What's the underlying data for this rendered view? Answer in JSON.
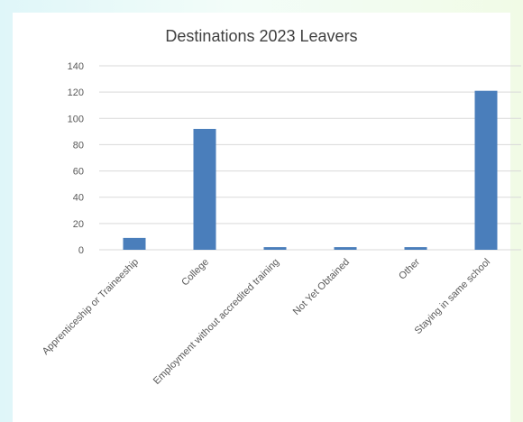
{
  "chart_data": {
    "type": "bar",
    "title": "Destinations 2023 Leavers",
    "xlabel": "",
    "ylabel": "",
    "categories": [
      "Apprenticeship or Traineeship",
      "College",
      "Employment without accredited training",
      "Not Yet Obtained",
      "Other",
      "Staying in same school"
    ],
    "values": [
      9,
      92,
      2,
      2,
      2,
      121
    ],
    "ylim": [
      0,
      140
    ],
    "yticks": [
      0,
      20,
      40,
      60,
      80,
      100,
      120,
      140
    ],
    "grid": true,
    "legend": "none",
    "bar_color": "#4a7ebb",
    "gridline_color": "#d9d9d9"
  }
}
